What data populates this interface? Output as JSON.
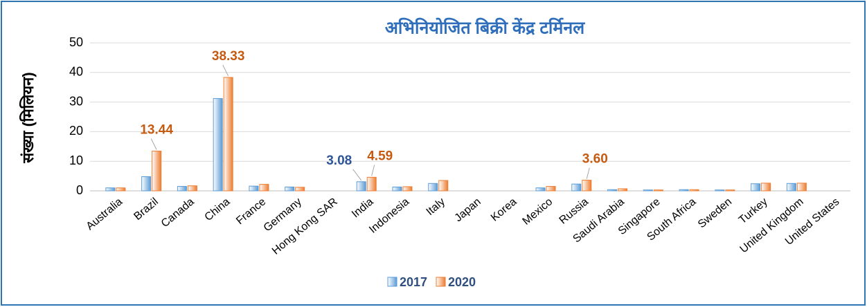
{
  "chart_data": {
    "type": "bar",
    "title": "अभिनियोजित बिक्री केंद्र टर्मिनल",
    "ylabel": "संख्या (मिलियन)",
    "categories": [
      "Australia",
      "Brazil",
      "Canada",
      "China",
      "France",
      "Germany",
      "Hong Kong SAR",
      "India",
      "Indonesia",
      "Italy",
      "Japan",
      "Korea",
      "Mexico",
      "Russia",
      "Saudi Arabia",
      "Singapore",
      "South Africa",
      "Sweden",
      "Turkey",
      "United Kingdom",
      "United States"
    ],
    "series": [
      {
        "name": "2017",
        "color": "#5b9bd5",
        "label_color": "#2f5597",
        "values": [
          1.0,
          4.8,
          1.5,
          31.2,
          1.6,
          1.3,
          null,
          3.08,
          1.3,
          2.5,
          null,
          null,
          1.0,
          2.3,
          0.4,
          0.3,
          0.4,
          0.3,
          2.4,
          2.5,
          null
        ],
        "value_labels": [
          null,
          null,
          null,
          null,
          null,
          null,
          null,
          "3.08",
          null,
          null,
          null,
          null,
          null,
          null,
          null,
          null,
          null,
          null,
          null,
          null,
          null
        ]
      },
      {
        "name": "2020",
        "color": "#ed7d31",
        "label_color": "#c55a11",
        "values": [
          1.0,
          13.44,
          1.7,
          38.33,
          2.2,
          1.2,
          null,
          4.59,
          1.4,
          3.5,
          null,
          null,
          1.5,
          3.6,
          0.7,
          0.3,
          0.4,
          0.3,
          2.6,
          2.6,
          null
        ],
        "value_labels": [
          null,
          "13.44",
          null,
          "38.33",
          null,
          null,
          null,
          "4.59",
          null,
          null,
          null,
          null,
          null,
          "3.60",
          null,
          null,
          null,
          null,
          null,
          null,
          null
        ]
      }
    ],
    "ylim": [
      0,
      50
    ],
    "yticks": [
      0,
      10,
      20,
      30,
      40,
      50
    ],
    "grid": true,
    "legend": "bottom"
  }
}
